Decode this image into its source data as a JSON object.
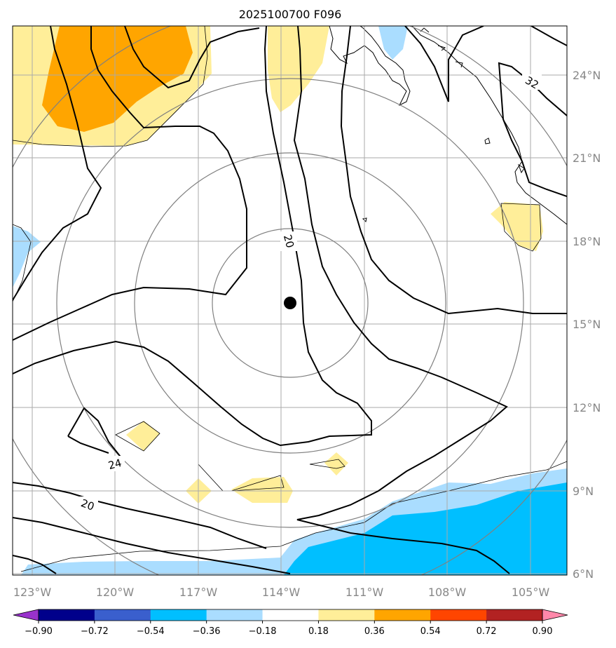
{
  "title": "2025100700 F096",
  "map": {
    "lon_labels": [
      "123°W",
      "120°W",
      "117°W",
      "114°W",
      "111°W",
      "108°W",
      "105°W"
    ],
    "lat_labels": [
      "24°N",
      "21°N",
      "18°N",
      "15°N",
      "12°N",
      "9°N",
      "6°N"
    ],
    "contour_labels": [
      "20",
      "32",
      "24",
      "20"
    ],
    "storm_center": {
      "lon": -113.7,
      "lat": 15.7
    },
    "range_rings": 4,
    "colors": {
      "border": "#000000",
      "gridline": "#aaaaaa",
      "ring": "#808080",
      "contour": "#000000"
    }
  },
  "colorbar": {
    "tick_labels": [
      "−0.90",
      "−0.72",
      "−0.54",
      "−0.36",
      "−0.18",
      "0.18",
      "0.36",
      "0.54",
      "0.72",
      "0.90"
    ],
    "under_color": "#9932cc",
    "over_color": "#ff88aa",
    "colors": [
      "#00008b",
      "#3a5fcd",
      "#00bfff",
      "#aaddff",
      "#ffffff",
      "#ffee99",
      "#ffa500",
      "#ff4500",
      "#b22222"
    ]
  }
}
